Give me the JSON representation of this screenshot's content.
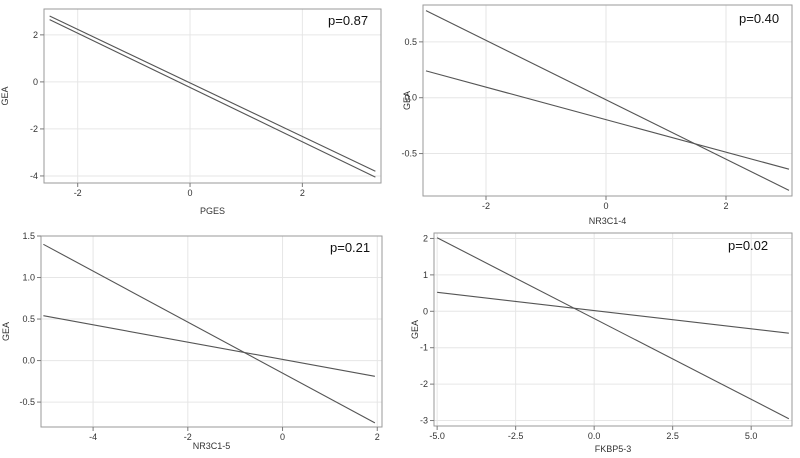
{
  "chart_data": [
    {
      "type": "line",
      "title": "",
      "xlabel": "PGES",
      "ylabel": "GEA",
      "annotation": "p=0.87",
      "xlim": [
        -2.6,
        3.4
      ],
      "ylim": [
        -4.3,
        3.1
      ],
      "xticks": [
        -2,
        0,
        2
      ],
      "xtick_labels": [
        "-2",
        "0",
        "2"
      ],
      "yticks": [
        -4,
        -2,
        0,
        2
      ],
      "ytick_labels": [
        "-4",
        "-2",
        "0",
        "2"
      ],
      "grid": true,
      "series": [
        {
          "x": [
            -2.5,
            3.3
          ],
          "y": [
            2.8,
            -3.8
          ]
        },
        {
          "x": [
            -2.5,
            3.3
          ],
          "y": [
            2.65,
            -4.05
          ]
        }
      ]
    },
    {
      "type": "line",
      "title": "",
      "xlabel": "NR3C1-4",
      "ylabel": "GEA",
      "annotation": "p=0.40",
      "xlim": [
        -3.05,
        3.1
      ],
      "ylim": [
        -0.88,
        0.83
      ],
      "xticks": [
        -2,
        0,
        2
      ],
      "xtick_labels": [
        "-2",
        "0",
        "2"
      ],
      "yticks": [
        -0.5,
        0.0,
        0.5
      ],
      "ytick_labels": [
        "-0.5",
        "0.0",
        "0.5"
      ],
      "grid": true,
      "series": [
        {
          "x": [
            -3.0,
            3.05
          ],
          "y": [
            0.78,
            -0.83
          ]
        },
        {
          "x": [
            -3.0,
            3.05
          ],
          "y": [
            0.24,
            -0.64
          ]
        }
      ]
    },
    {
      "type": "line",
      "title": "",
      "xlabel": "NR3C1-5",
      "ylabel": "GEA",
      "annotation": "p=0.21",
      "xlim": [
        -5.1,
        2.1
      ],
      "ylim": [
        -0.8,
        1.5
      ],
      "xticks": [
        -4,
        -2,
        0,
        2
      ],
      "xtick_labels": [
        "-4",
        "-2",
        "0",
        "2"
      ],
      "yticks": [
        -0.5,
        0.0,
        0.5,
        1.0,
        1.5
      ],
      "ytick_labels": [
        "-0.5",
        "0.0",
        "0.5",
        "1.0",
        "1.5"
      ],
      "grid": true,
      "series": [
        {
          "x": [
            -5.05,
            1.95
          ],
          "y": [
            1.4,
            -0.75
          ]
        },
        {
          "x": [
            -5.05,
            1.95
          ],
          "y": [
            0.54,
            -0.19
          ]
        }
      ]
    },
    {
      "type": "line",
      "title": "",
      "xlabel": "FKBP5-3",
      "ylabel": "GEA",
      "annotation": "p=0.02",
      "xlim": [
        -5.1,
        6.3
      ],
      "ylim": [
        -3.15,
        2.15
      ],
      "xticks": [
        -5.0,
        -2.5,
        0.0,
        2.5,
        5.0
      ],
      "xtick_labels": [
        "-5.0",
        "-2.5",
        "0.0",
        "2.5",
        "5.0"
      ],
      "yticks": [
        -3,
        -2,
        -1,
        0,
        1,
        2
      ],
      "ytick_labels": [
        "-3",
        "-2",
        "-1",
        "0",
        "1",
        "2"
      ],
      "grid": true,
      "series": [
        {
          "x": [
            -5.0,
            6.2
          ],
          "y": [
            2.02,
            -2.95
          ]
        },
        {
          "x": [
            -5.0,
            6.2
          ],
          "y": [
            0.52,
            -0.6
          ]
        }
      ]
    }
  ]
}
